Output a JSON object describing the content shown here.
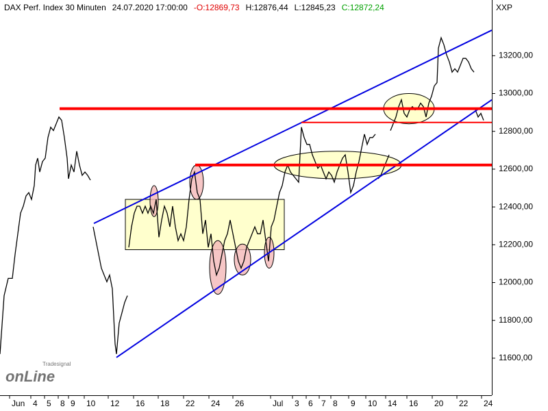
{
  "chart_data": {
    "type": "line",
    "header": [
      {
        "text": "DAX Perf. Index 30 Minuten",
        "color": "#000000"
      },
      {
        "text": "24.07.2020 17:00:00",
        "color": "#000000"
      },
      {
        "text": "-O:12869,73",
        "color": "#e00000"
      },
      {
        "text": "H:12876,44",
        "color": "#000000"
      },
      {
        "text": "L:12845,23",
        "color": "#000000"
      },
      {
        "text": "C:12872,24",
        "color": "#00a000"
      }
    ],
    "symbol": "XXP",
    "watermark": [
      "Tradesignal",
      "onLine"
    ],
    "xlim": [
      0,
      718
    ],
    "ylim": [
      11404,
      13415
    ],
    "yticks": [
      {
        "value": 11600,
        "label": "11600,00"
      },
      {
        "value": 11800,
        "label": "11800,00"
      },
      {
        "value": 12000,
        "label": "12000,00"
      },
      {
        "value": 12200,
        "label": "12200,00"
      },
      {
        "value": 12400,
        "label": "12400,00"
      },
      {
        "value": 12600,
        "label": "12600,00"
      },
      {
        "value": 12800,
        "label": "12800,00"
      },
      {
        "value": 13000,
        "label": "13000,00"
      },
      {
        "value": 13200,
        "label": "13200,00"
      }
    ],
    "xticks": [
      {
        "value": 14,
        "label": "Jun"
      },
      {
        "value": 45,
        "label": "4"
      },
      {
        "value": 65,
        "label": "5"
      },
      {
        "value": 85,
        "label": "8"
      },
      {
        "value": 100,
        "label": "9"
      },
      {
        "value": 123,
        "label": "10"
      },
      {
        "value": 158,
        "label": "12"
      },
      {
        "value": 195,
        "label": "16"
      },
      {
        "value": 231,
        "label": "18"
      },
      {
        "value": 268,
        "label": "22"
      },
      {
        "value": 305,
        "label": "24"
      },
      {
        "value": 340,
        "label": "26"
      },
      {
        "value": 395,
        "label": "Jul"
      },
      {
        "value": 427,
        "label": "3"
      },
      {
        "value": 447,
        "label": "6"
      },
      {
        "value": 466,
        "label": "7"
      },
      {
        "value": 483,
        "label": "8"
      },
      {
        "value": 509,
        "label": "9"
      },
      {
        "value": 534,
        "label": "10"
      },
      {
        "value": 563,
        "label": "14"
      },
      {
        "value": 594,
        "label": "16"
      },
      {
        "value": 631,
        "label": "20"
      },
      {
        "value": 667,
        "label": "22"
      },
      {
        "value": 703,
        "label": "24"
      }
    ],
    "series": [
      {
        "color": "#000000",
        "x": [
          0,
          6,
          12,
          18,
          22,
          26,
          30,
          34,
          38,
          42,
          46,
          50,
          52,
          55,
          58,
          62,
          66,
          70,
          74,
          78,
          82,
          86,
          90,
          94,
          98,
          100,
          104,
          108,
          112,
          116,
          120,
          124,
          128,
          132,
          134,
          136,
          140,
          144,
          148,
          152,
          156,
          160,
          164,
          168,
          170,
          174,
          178,
          182,
          186,
          187,
          188,
          192,
          196,
          200,
          204,
          208,
          212,
          216,
          220,
          224,
          228,
          232,
          236,
          240,
          244,
          248,
          252,
          256,
          260,
          264,
          268,
          272,
          276,
          280,
          284,
          288,
          292,
          296,
          300,
          304,
          308,
          312,
          316,
          320,
          324,
          328,
          332,
          336,
          340,
          344,
          348,
          352,
          356,
          360,
          364,
          368,
          372,
          376,
          380,
          384,
          388,
          392,
          396,
          400,
          404,
          408,
          412,
          416,
          420,
          424,
          428,
          432,
          436,
          440,
          444,
          448,
          452,
          456,
          460,
          464,
          468,
          472,
          476,
          480,
          484,
          488,
          492,
          496,
          500,
          504,
          508,
          512,
          516,
          520,
          524,
          528,
          532,
          536,
          540,
          544,
          548,
          550,
          552,
          556,
          560,
          564,
          568,
          569,
          570,
          574,
          578,
          582,
          586,
          590,
          594,
          598,
          602,
          606,
          610,
          614,
          618,
          622,
          626,
          630,
          634,
          638,
          640,
          644,
          648,
          652,
          656,
          660,
          664,
          668,
          672,
          676,
          680,
          684,
          688,
          692,
          693,
          694,
          698,
          702,
          706
        ],
        "values": [
          11622,
          11931,
          12022,
          12022,
          12149,
          12258,
          12367,
          12404,
          12458,
          12476,
          12440,
          12513,
          12622,
          12658,
          12585,
          12640,
          12658,
          12767,
          12822,
          12804,
          12840,
          12876,
          12858,
          12767,
          12658,
          12549,
          12622,
          12585,
          12695,
          12622,
          12567,
          12585,
          12567,
          12542,
          null,
          12295,
          12222,
          12149,
          12076,
          12040,
          12004,
          12040,
          11967,
          11676,
          11622,
          11786,
          11840,
          11895,
          11931,
          null,
          12186,
          12295,
          12367,
          12404,
          12404,
          12367,
          12404,
          12367,
          12404,
          12367,
          12440,
          12240,
          12331,
          12404,
          12367,
          12295,
          12404,
          12295,
          12222,
          12258,
          12222,
          12295,
          12440,
          12549,
          12585,
          12476,
          12440,
          12258,
          12331,
          12186,
          12258,
          12113,
          12040,
          12076,
          12149,
          12222,
          12258,
          12331,
          12258,
          12186,
          12113,
          12076,
          12113,
          12186,
          12222,
          12258,
          12295,
          12258,
          12258,
          12331,
          12222,
          12113,
          12295,
          12331,
          12404,
          12476,
          12513,
          12585,
          12622,
          12585,
          12567,
          12549,
          12531,
          12822,
          12767,
          12731,
          12731,
          12676,
          12640,
          12604,
          12622,
          12585,
          12549,
          12585,
          12567,
          12531,
          12585,
          12622,
          12658,
          12676,
          12585,
          12476,
          12513,
          12585,
          12640,
          12713,
          12785,
          12731,
          12767,
          12767,
          12785,
          null,
          12549,
          12567,
          12604,
          12640,
          12676,
          null,
          12804,
          12840,
          12876,
          12931,
          12967,
          12895,
          12876,
          12913,
          12931,
          12913,
          12920,
          12949,
          12931,
          12876,
          12949,
          12986,
          13040,
          13058,
          13240,
          13295,
          13258,
          13204,
          13167,
          13113,
          13131,
          13113,
          13149,
          13186,
          13186,
          13167,
          13131,
          13113,
          null,
          12913,
          12876,
          12895,
          12858
        ]
      }
    ],
    "annotations": [
      {
        "shape": "rect",
        "x": [
          183,
          415
        ],
        "y": [
          12174,
          12440
        ],
        "color": "#ffffc0"
      },
      {
        "shape": "ellipse",
        "x": [
          560,
          634
        ],
        "y": [
          12840,
          13000
        ],
        "color": "#ffffc0"
      },
      {
        "shape": "ellipse",
        "x": [
          400,
          586
        ],
        "y": [
          12549,
          12695
        ],
        "color": "#ffffc0"
      },
      {
        "shape": "ellipse",
        "x": [
          219,
          231
        ],
        "y": [
          12349,
          12513
        ],
        "color": "#f4b8b8"
      },
      {
        "shape": "ellipse",
        "x": [
          277,
          297
        ],
        "y": [
          12440,
          12622
        ],
        "color": "#f4b8b8"
      },
      {
        "shape": "ellipse",
        "x": [
          306,
          330
        ],
        "y": [
          11938,
          12222
        ],
        "color": "#f4b8b8"
      },
      {
        "shape": "ellipse",
        "x": [
          342,
          366
        ],
        "y": [
          12040,
          12204
        ],
        "color": "#f4b8b8"
      },
      {
        "shape": "ellipse",
        "x": [
          386,
          400
        ],
        "y": [
          12076,
          12240
        ],
        "color": "#f4b8b8"
      },
      {
        "shape": "line",
        "x": [
          137,
          718
        ],
        "y": [
          12313,
          13335
        ],
        "color": "#0000e0",
        "width": 2
      },
      {
        "shape": "line",
        "x": [
          170,
          718
        ],
        "y": [
          11604,
          12967
        ],
        "color": "#0000e0",
        "width": 2
      },
      {
        "shape": "line",
        "x": [
          87,
          718
        ],
        "y": [
          12920,
          12920
        ],
        "color": "#ff0000",
        "width": 4
      },
      {
        "shape": "line",
        "x": [
          285,
          718
        ],
        "y": [
          12622,
          12622
        ],
        "color": "#ff0000",
        "width": 4
      },
      {
        "shape": "line",
        "x": [
          440,
          718
        ],
        "y": [
          12847,
          12847
        ],
        "color": "#ff0000",
        "width": 2
      }
    ]
  }
}
